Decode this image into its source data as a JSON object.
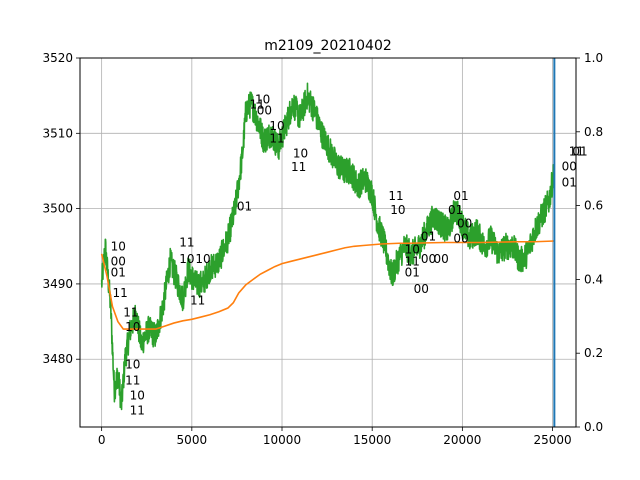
{
  "chart_data": {
    "type": "line",
    "title": "m2109_20210402",
    "xlim": [
      -1200,
      26300
    ],
    "ylim": [
      3471,
      3520
    ],
    "y2lim": [
      0.0,
      1.0
    ],
    "grid": true,
    "x_ticks": [
      "0",
      "5000",
      "10000",
      "15000",
      "20000",
      "25000"
    ],
    "x_tick_values": [
      0,
      5000,
      10000,
      15000,
      20000,
      25000
    ],
    "y_ticks": [
      "3480",
      "3490",
      "3500",
      "3510",
      "3520"
    ],
    "y_tick_values": [
      3480,
      3490,
      3500,
      3510,
      3520
    ],
    "y2_ticks": [
      "0.0",
      "0.2",
      "0.4",
      "0.6",
      "0.8",
      "1.0"
    ],
    "y2_tick_values": [
      0.0,
      0.2,
      0.4,
      0.6,
      0.8,
      1.0
    ],
    "colors": {
      "price": "#2ca02c",
      "average": "#ff7f0e",
      "marker": "#1f77b4",
      "grid": "#b0b0b0"
    },
    "series": [
      {
        "key": "price",
        "x": [
          0,
          200,
          500,
          700,
          900,
          1100,
          1300,
          1600,
          1900,
          2200,
          2600,
          3000,
          3400,
          3800,
          4100,
          4500,
          4800,
          5200,
          5600,
          6000,
          6500,
          7000,
          7400,
          7800,
          8000,
          8300,
          8600,
          9000,
          9400,
          9800,
          10200,
          10600,
          11000,
          11400,
          11800,
          12200,
          12600,
          13000,
          13400,
          13800,
          14200,
          14600,
          15000,
          15300,
          15600,
          15800,
          16100,
          16400,
          16800,
          17200,
          17600,
          18000,
          18400,
          18800,
          19200,
          19600,
          20000,
          20400,
          20800,
          21200,
          21600,
          22000,
          22400,
          22800,
          23200,
          23600,
          24000,
          24400,
          24800,
          25100
        ],
        "y": [
          3490,
          3495,
          3487,
          3476,
          3478,
          3474,
          3480,
          3484,
          3486,
          3482,
          3484,
          3483,
          3487,
          3493,
          3491,
          3488,
          3492,
          3490,
          3490,
          3492,
          3493,
          3496,
          3500,
          3507,
          3513,
          3514,
          3512,
          3509,
          3510,
          3508,
          3511,
          3514,
          3512,
          3515,
          3513,
          3510,
          3508,
          3506,
          3505,
          3505,
          3503,
          3504,
          3502,
          3498,
          3496,
          3494,
          3491,
          3493,
          3495,
          3494,
          3495,
          3497,
          3499,
          3498,
          3497,
          3500,
          3498,
          3496,
          3497,
          3495,
          3496,
          3494,
          3495,
          3495,
          3493,
          3494,
          3497,
          3499,
          3501,
          3505
        ],
        "amplitude": 1.8
      },
      {
        "key": "average",
        "x": [
          0,
          300,
          600,
          900,
          1200,
          1600,
          2000,
          2500,
          3000,
          3500,
          4000,
          4500,
          5000,
          5500,
          6000,
          6500,
          7000,
          7300,
          7600,
          8000,
          8400,
          8800,
          9200,
          9600,
          10000,
          10500,
          11000,
          11500,
          12000,
          12500,
          13000,
          13500,
          14000,
          14500,
          15000,
          15500,
          16000,
          16500,
          17000,
          18000,
          19000,
          20000,
          21000,
          22000,
          23000,
          24000,
          25100
        ],
        "y": [
          3494,
          3491,
          3487,
          3485,
          3484,
          3484,
          3484,
          3484,
          3484,
          3484.4,
          3484.8,
          3485.1,
          3485.3,
          3485.6,
          3485.9,
          3486.3,
          3486.8,
          3487.5,
          3488.8,
          3489.9,
          3490.6,
          3491.3,
          3491.8,
          3492.3,
          3492.7,
          3493,
          3493.3,
          3493.6,
          3493.9,
          3494.2,
          3494.5,
          3494.8,
          3495,
          3495.1,
          3495.2,
          3495.3,
          3495.35,
          3495.4,
          3495.4,
          3495.45,
          3495.5,
          3495.5,
          3495.5,
          3495.55,
          3495.6,
          3495.6,
          3495.7
        ]
      }
    ],
    "marker_line": {
      "x": 25100
    },
    "annotations": [
      {
        "text": "10",
        "x": 500,
        "y": 3495
      },
      {
        "text": "00",
        "x": 500,
        "y": 3493
      },
      {
        "text": "01",
        "x": 500,
        "y": 3491.5
      },
      {
        "text": "11",
        "x": 600,
        "y": 3488.8
      },
      {
        "text": "11",
        "x": 1200,
        "y": 3486.2
      },
      {
        "text": "10",
        "x": 1300,
        "y": 3484.3
      },
      {
        "text": "10",
        "x": 1300,
        "y": 3479.3
      },
      {
        "text": "11",
        "x": 1300,
        "y": 3477.2
      },
      {
        "text": "10",
        "x": 1550,
        "y": 3475.2
      },
      {
        "text": "11",
        "x": 1550,
        "y": 3473.2
      },
      {
        "text": "11",
        "x": 4300,
        "y": 3495.5
      },
      {
        "text": "10",
        "x": 4300,
        "y": 3493.3
      },
      {
        "text": "10",
        "x": 5200,
        "y": 3493.3
      },
      {
        "text": "11",
        "x": 4900,
        "y": 3487.8
      },
      {
        "text": "01",
        "x": 7500,
        "y": 3500.3
      },
      {
        "text": "10",
        "x": 8500,
        "y": 3514.5
      },
      {
        "text": "11",
        "x": 8200,
        "y": 3513.8
      },
      {
        "text": "00",
        "x": 8600,
        "y": 3513
      },
      {
        "text": "10",
        "x": 9300,
        "y": 3511
      },
      {
        "text": "11",
        "x": 9300,
        "y": 3509.3
      },
      {
        "text": "10",
        "x": 10600,
        "y": 3507.3
      },
      {
        "text": "11",
        "x": 10500,
        "y": 3505.5
      },
      {
        "text": "11",
        "x": 15900,
        "y": 3501.7
      },
      {
        "text": "10",
        "x": 16000,
        "y": 3499.8
      },
      {
        "text": "10",
        "x": 16800,
        "y": 3494.6
      },
      {
        "text": "11",
        "x": 16800,
        "y": 3493
      },
      {
        "text": "01",
        "x": 16800,
        "y": 3491.5
      },
      {
        "text": "01",
        "x": 17700,
        "y": 3496.3
      },
      {
        "text": "00",
        "x": 17700,
        "y": 3493.3
      },
      {
        "text": "00",
        "x": 18400,
        "y": 3493.3
      },
      {
        "text": "00",
        "x": 17300,
        "y": 3489.3
      },
      {
        "text": "01",
        "x": 19500,
        "y": 3501.7
      },
      {
        "text": "01",
        "x": 19200,
        "y": 3499.8
      },
      {
        "text": "00",
        "x": 19700,
        "y": 3498
      },
      {
        "text": "00",
        "x": 19500,
        "y": 3496
      },
      {
        "text": "00",
        "x": 25500,
        "y": 3505.6
      },
      {
        "text": "01",
        "x": 25500,
        "y": 3503.5
      },
      {
        "text": "11",
        "x": 25900,
        "y": 3507.6
      },
      {
        "text": "01",
        "x": 26100,
        "y": 3507.6
      }
    ]
  }
}
